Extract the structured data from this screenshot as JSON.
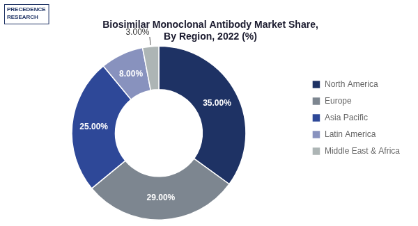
{
  "chart_data": {
    "type": "doughnut",
    "title": "Biosimilar Monoclonal Antibody Market Share,\nBy Region, 2022 (%)",
    "categories": [
      "North America",
      "Europe",
      "Asia Pacific",
      "Latin America",
      "Middle East & Africa"
    ],
    "values": [
      35.0,
      29.0,
      25.0,
      8.0,
      3.0
    ],
    "value_labels": [
      "35.00%",
      "29.00%",
      "25.00%",
      "8.00%",
      "3.00%"
    ],
    "colors": [
      "#1e3264",
      "#7d8690",
      "#2e4898",
      "#8892be",
      "#adb5b5"
    ],
    "data_labels": true,
    "legend": "right",
    "annotations": [
      "PRECEDENCE\nRESEARCH"
    ]
  }
}
